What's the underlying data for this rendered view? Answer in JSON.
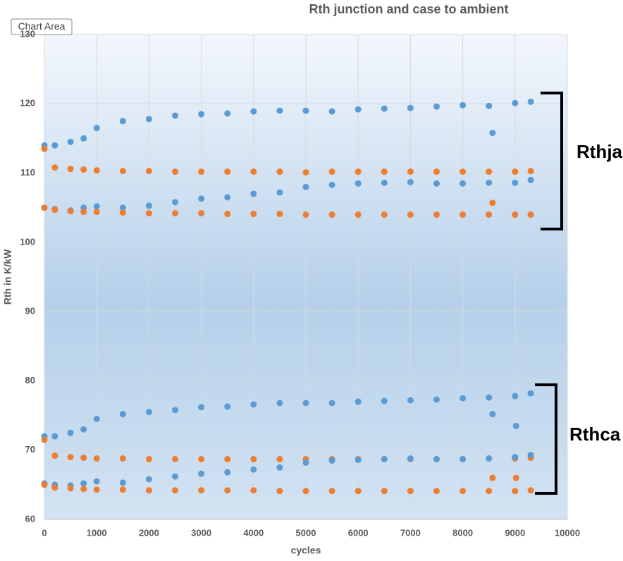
{
  "chart_data": {
    "type": "scatter",
    "title": "Rth junction and case to ambient",
    "x_label": "cycles",
    "y_label": "Rth in K/kW",
    "tooltip": "Chart Area",
    "annotations": [
      "Rthja",
      "Rthca"
    ],
    "xlim": [
      0,
      10000
    ],
    "xticks": [
      0,
      1000,
      2000,
      3000,
      4000,
      5000,
      6000,
      7000,
      8000,
      9000,
      10000
    ],
    "ylim": [
      60,
      130
    ],
    "yticks": [
      60,
      70,
      80,
      90,
      100,
      110,
      120,
      130
    ],
    "grid": true,
    "x": [
      0,
      200,
      500,
      750,
      1000,
      1500,
      2000,
      2500,
      3000,
      3500,
      4000,
      4500,
      5000,
      5500,
      6000,
      6500,
      7000,
      7500,
      8000,
      8500,
      9000,
      9300
    ],
    "series": [
      {
        "color": "#5b9bd5",
        "values": [
          114,
          114,
          114.5,
          115,
          116.5,
          117.5,
          117.8,
          118.3,
          118.5,
          118.6,
          118.9,
          119,
          119,
          118.9,
          119.2,
          119.3,
          119.4,
          119.6,
          119.8,
          119.7,
          120.1,
          120.3
        ]
      },
      {
        "color": "#ed7d31",
        "values": [
          113.5,
          110.8,
          110.6,
          110.5,
          110.4,
          110.3,
          110.3,
          110.2,
          110.2,
          110.2,
          110.2,
          110.2,
          110.1,
          110.2,
          110.2,
          110.2,
          110.2,
          110.2,
          110.2,
          110.2,
          110.2,
          110.3
        ]
      },
      {
        "color": "#5b9bd5",
        "values": [
          105,
          104.8,
          104.6,
          105,
          105.2,
          105,
          105.3,
          105.8,
          106.3,
          106.5,
          107,
          107.2,
          108,
          108.3,
          108.5,
          108.6,
          108.7,
          108.5,
          108.5,
          108.6,
          108.6,
          109
        ]
      },
      {
        "color": "#ed7d31",
        "values": [
          105,
          104.7,
          104.5,
          104.4,
          104.4,
          104.3,
          104.2,
          104.2,
          104.2,
          104.1,
          104.1,
          104.1,
          104,
          104,
          104,
          104,
          104,
          104,
          104,
          104,
          104,
          104
        ]
      },
      {
        "color": "#5b9bd5",
        "values": [
          72,
          72,
          72.5,
          73,
          74.5,
          75.2,
          75.5,
          75.8,
          76.2,
          76.3,
          76.6,
          76.8,
          76.8,
          76.8,
          77,
          77.1,
          77.2,
          77.3,
          77.5,
          77.6,
          77.8,
          78.2
        ]
      },
      {
        "color": "#ed7d31",
        "values": [
          71.5,
          69.2,
          69,
          68.9,
          68.8,
          68.8,
          68.7,
          68.7,
          68.7,
          68.7,
          68.7,
          68.7,
          68.7,
          68.7,
          68.7,
          68.7,
          68.7,
          68.7,
          68.7,
          68.8,
          68.8,
          68.9
        ]
      },
      {
        "color": "#5b9bd5",
        "values": [
          65.2,
          65,
          64.9,
          65.2,
          65.5,
          65.3,
          65.8,
          66.2,
          66.6,
          66.8,
          67.2,
          67.5,
          68.2,
          68.5,
          68.6,
          68.7,
          68.8,
          68.7,
          68.7,
          68.8,
          69,
          69.3
        ]
      },
      {
        "color": "#ed7d31",
        "values": [
          65,
          64.6,
          64.5,
          64.4,
          64.3,
          64.3,
          64.2,
          64.2,
          64.2,
          64.2,
          64.2,
          64.1,
          64.1,
          64.1,
          64.1,
          64.1,
          64.1,
          64.1,
          64.1,
          64.1,
          64.1,
          64.2
        ]
      },
      {
        "color": "#5b9bd5",
        "x": [
          8570,
          8570,
          9020
        ],
        "values": [
          115.8,
          75.2,
          73.5
        ]
      },
      {
        "color": "#ed7d31",
        "x": [
          8570,
          8570,
          9020
        ],
        "values": [
          105.7,
          66,
          66
        ]
      }
    ]
  }
}
